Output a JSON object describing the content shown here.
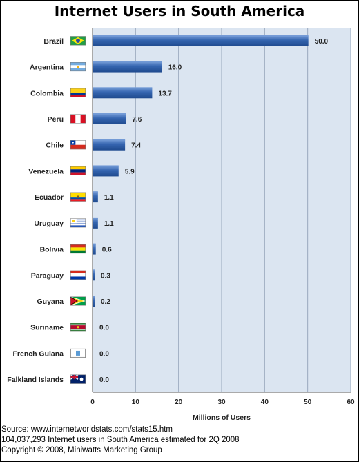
{
  "chart_data": {
    "type": "bar",
    "orientation": "horizontal",
    "title": "Internet Users in South America",
    "xlabel": "Millions of Users",
    "ylabel": "",
    "categories": [
      "Brazil",
      "Argentina",
      "Colombia",
      "Peru",
      "Chile",
      "Venezuela",
      "Ecuador",
      "Uruguay",
      "Bolivia",
      "Paraguay",
      "Guyana",
      "Suriname",
      "French Guiana",
      "Falkland Islands"
    ],
    "values": [
      50.0,
      16.0,
      13.7,
      7.6,
      7.4,
      5.9,
      1.1,
      1.1,
      0.6,
      0.3,
      0.2,
      0.0,
      0.0,
      0.0
    ],
    "value_labels": [
      "50.0",
      "16.0",
      "13.7",
      "7.6",
      "7.4",
      "5.9",
      "1.1",
      "1.1",
      "0.6",
      "0.3",
      "0.2",
      "0.0",
      "0.0",
      "0.0"
    ],
    "xlim": [
      0,
      60
    ],
    "xticks": [
      0,
      10,
      20,
      30,
      40,
      50,
      60
    ],
    "grid": true,
    "legend": "none",
    "colors": {
      "bar": "#2f5fa8",
      "bar_highlight": "#6f97d4",
      "plot_background": "#dbe5f1",
      "gridline": "#9aa9bd"
    }
  },
  "footer": {
    "source": "Source: www.internetworldstats.com/stats15.htm",
    "estimate": "104,037,293 Internet users in South America estimated for 2Q 2008",
    "copyright": "Copyright © 2008, Miniwatts Marketing Group"
  }
}
